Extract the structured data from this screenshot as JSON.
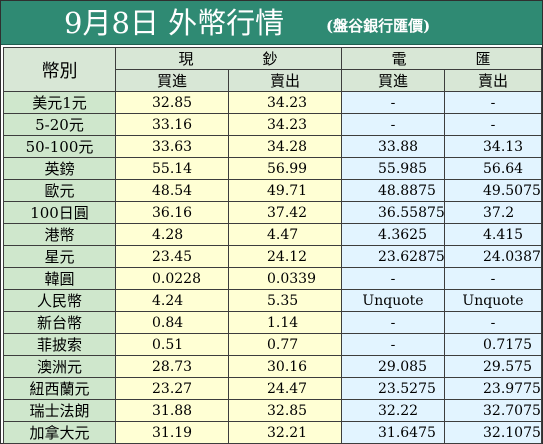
{
  "title": {
    "main": "9月8日 外幣行情",
    "sub": "(盤谷銀行匯價)"
  },
  "headers": {
    "currency": "幣別",
    "cash": [
      "現",
      "鈔"
    ],
    "telegraphic": [
      "電",
      "匯"
    ],
    "buy": "買進",
    "sell": "賣出"
  },
  "rows": [
    {
      "currency": "美元1元",
      "cash_buy": "32.85",
      "cash_sell": "34.23",
      "tt_buy": "-",
      "tt_sell": "-"
    },
    {
      "currency": "5-20元",
      "cash_buy": "33.16",
      "cash_sell": "34.23",
      "tt_buy": "-",
      "tt_sell": "-"
    },
    {
      "currency": "50-100元",
      "cash_buy": "33.63",
      "cash_sell": "34.28",
      "tt_buy": "33.88",
      "tt_sell": "34.13"
    },
    {
      "currency": "英鎊",
      "cash_buy": "55.14",
      "cash_sell": "56.99",
      "tt_buy": "55.985",
      "tt_sell": "56.64"
    },
    {
      "currency": "歐元",
      "cash_buy": "48.54",
      "cash_sell": "49.71",
      "tt_buy": "48.8875",
      "tt_sell": "49.5075"
    },
    {
      "currency": "100日圓",
      "cash_buy": "36.16",
      "cash_sell": "37.42",
      "tt_buy": "36.55875",
      "tt_sell": "37.2"
    },
    {
      "currency": "港幣",
      "cash_buy": "4.28",
      "cash_sell": "4.47",
      "tt_buy": "4.3625",
      "tt_sell": "4.415"
    },
    {
      "currency": "星元",
      "cash_buy": "23.45",
      "cash_sell": "24.12",
      "tt_buy": "23.62875",
      "tt_sell": "24.03875"
    },
    {
      "currency": "韓圓",
      "cash_buy": "0.0228",
      "cash_sell": "0.0339",
      "tt_buy": "-",
      "tt_sell": "-"
    },
    {
      "currency": "人民幣",
      "cash_buy": "4.24",
      "cash_sell": "5.35",
      "tt_buy": "Unquote",
      "tt_sell": "Unquote"
    },
    {
      "currency": "新台幣",
      "cash_buy": "0.84",
      "cash_sell": "1.14",
      "tt_buy": "-",
      "tt_sell": "-"
    },
    {
      "currency": "菲披索",
      "cash_buy": "0.51",
      "cash_sell": "0.77",
      "tt_buy": "-",
      "tt_sell": "0.7175"
    },
    {
      "currency": "澳洲元",
      "cash_buy": "28.73",
      "cash_sell": "30.16",
      "tt_buy": "29.085",
      "tt_sell": "29.575"
    },
    {
      "currency": "紐西蘭元",
      "cash_buy": "23.27",
      "cash_sell": "24.47",
      "tt_buy": "23.5275",
      "tt_sell": "23.9775"
    },
    {
      "currency": "瑞士法朗",
      "cash_buy": "31.88",
      "cash_sell": "32.85",
      "tt_buy": "32.22",
      "tt_sell": "32.7075"
    },
    {
      "currency": "加拿大元",
      "cash_buy": "31.19",
      "cash_sell": "32.21",
      "tt_buy": "31.6475",
      "tt_sell": "32.1075"
    }
  ],
  "colors": {
    "title_bg": "#2f8a73",
    "header_bg": "#cfe7cc",
    "cash_bg": "#ffffd4",
    "tt_bg": "#e2f4ff"
  }
}
